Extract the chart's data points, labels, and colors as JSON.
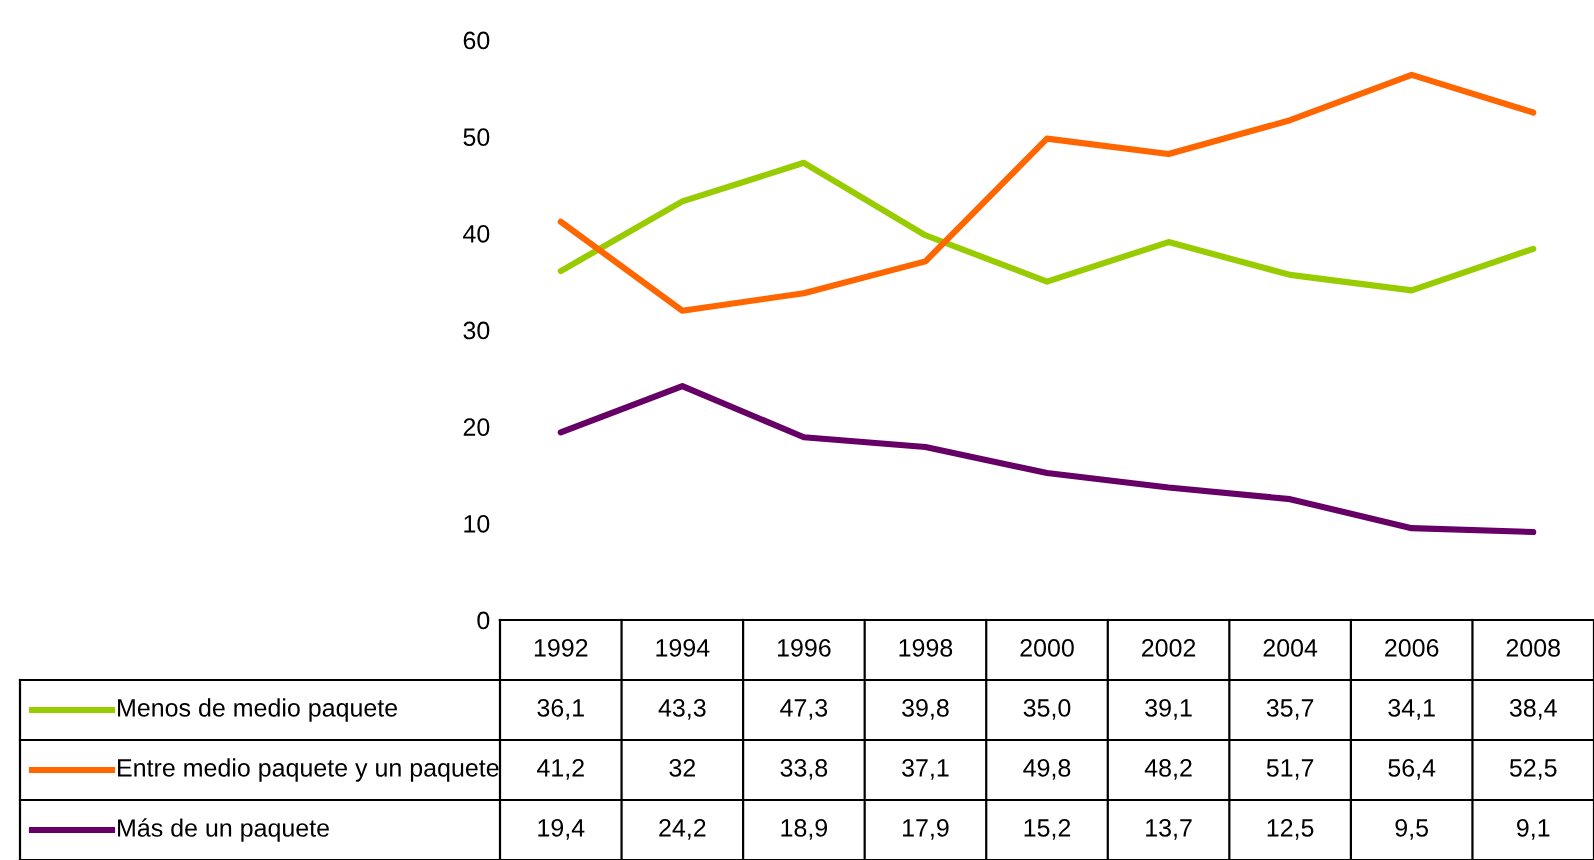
{
  "chart_data": {
    "type": "line",
    "categories": [
      "1992",
      "1994",
      "1996",
      "1998",
      "2000",
      "2002",
      "2004",
      "2006",
      "2008"
    ],
    "ylim": [
      0,
      60
    ],
    "yticks": [
      0,
      10,
      20,
      30,
      40,
      50,
      60
    ],
    "grid": false,
    "legend": "bottom",
    "line_style": "solid",
    "marker": "none",
    "series": [
      {
        "name": "Menos de medio paquete",
        "color": "#99cc00",
        "values": [
          36.1,
          43.3,
          47.3,
          39.8,
          35.0,
          39.1,
          35.7,
          34.1,
          38.4
        ],
        "value_labels": [
          "36,1",
          "43,3",
          "47,3",
          "39,8",
          "35,0",
          "39,1",
          "35,7",
          "34,1",
          "38,4"
        ]
      },
      {
        "name": "Entre medio paquete y un paquete",
        "color": "#ff6600",
        "values": [
          41.2,
          32,
          33.8,
          37.1,
          49.8,
          48.2,
          51.7,
          56.4,
          52.5
        ],
        "value_labels": [
          "41,2",
          "32",
          "33,8",
          "37,1",
          "49,8",
          "48,2",
          "51,7",
          "56,4",
          "52,5"
        ]
      },
      {
        "name": "Más de un paquete",
        "color": "#660066",
        "values": [
          19.4,
          24.2,
          18.9,
          17.9,
          15.2,
          13.7,
          12.5,
          9.5,
          9.1
        ],
        "value_labels": [
          "19,4",
          "24,2",
          "18,9",
          "17,9",
          "15,2",
          "13,7",
          "12,5",
          "9,5",
          "9,1"
        ]
      }
    ]
  }
}
